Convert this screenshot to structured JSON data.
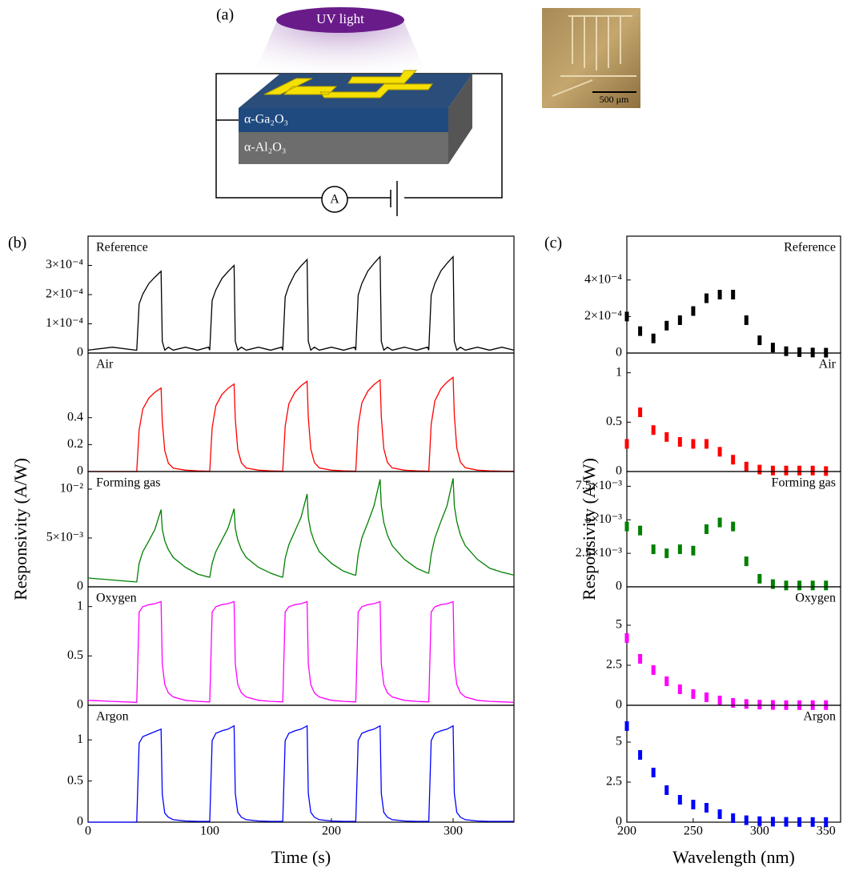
{
  "schematic": {
    "label": "(a)",
    "light": "UV light",
    "top_layer": "α-Ga₂O₃",
    "substrate": "α-Al₂O₃",
    "meter": "A",
    "scale_bar": "500 μm"
  },
  "chart_data": [
    {
      "type": "line",
      "name": "Reference",
      "color": "#000000",
      "panel_label": "(b)",
      "x": [
        0,
        20,
        39,
        40,
        42,
        45,
        50,
        55,
        60,
        61,
        63,
        66,
        70,
        80,
        90,
        99,
        100,
        102,
        105,
        110,
        115,
        120,
        121,
        123,
        126,
        130,
        140,
        150,
        159,
        160,
        162,
        165,
        170,
        175,
        180,
        181,
        183,
        186,
        190,
        200,
        210,
        219,
        220,
        222,
        225,
        230,
        235,
        240,
        241,
        243,
        246,
        250,
        260,
        270,
        279,
        280,
        282,
        285,
        290,
        295,
        300,
        301,
        303,
        306,
        310,
        320,
        330,
        340,
        350
      ],
      "values": [
        1e-05,
        2e-05,
        1e-05,
        1e-05,
        0.000168,
        0.000202,
        0.000238,
        0.00026,
        0.00028,
        4e-05,
        1e-05,
        2e-05,
        1e-05,
        2e-05,
        1e-05,
        2e-05,
        1e-05,
        0.00018,
        0.000216,
        0.000255,
        0.000279,
        0.0003,
        4e-05,
        1e-05,
        2e-05,
        1e-05,
        2e-05,
        1e-05,
        2e-05,
        1e-05,
        0.000192,
        0.00023,
        0.000272,
        0.000298,
        0.00032,
        4e-05,
        1e-05,
        2e-05,
        1e-05,
        2e-05,
        1e-05,
        2e-05,
        1e-05,
        0.000198,
        0.000238,
        0.000281,
        0.000307,
        0.00033,
        4e-05,
        1e-05,
        2e-05,
        1e-05,
        2e-05,
        1e-05,
        2e-05,
        1e-05,
        0.000198,
        0.000238,
        0.000281,
        0.000307,
        0.00033,
        4e-05,
        1e-05,
        2e-05,
        1e-05,
        2e-05,
        1e-05,
        2e-05,
        1e-05
      ],
      "xlim": [
        0,
        350
      ],
      "ylim": [
        0,
        0.0004
      ],
      "yticks": [
        0,
        {
          "value": 0.0001,
          "label": "1×10⁻⁴"
        },
        {
          "value": 0.0002,
          "label": "2×10⁻⁴"
        },
        {
          "value": 0.0003,
          "label": "3×10⁻⁴"
        }
      ]
    },
    {
      "type": "line",
      "name": "Air",
      "color": "#ff0000",
      "x": [
        0,
        20,
        39,
        40,
        42,
        45,
        50,
        55,
        60,
        61,
        63,
        66,
        70,
        80,
        90,
        99,
        100,
        102,
        105,
        110,
        115,
        120,
        121,
        123,
        126,
        130,
        140,
        150,
        159,
        160,
        162,
        165,
        170,
        175,
        180,
        181,
        183,
        186,
        190,
        200,
        210,
        219,
        220,
        222,
        225,
        230,
        235,
        240,
        241,
        243,
        246,
        250,
        260,
        270,
        279,
        280,
        282,
        285,
        290,
        295,
        300,
        301,
        303,
        306,
        310,
        320,
        330,
        340,
        350
      ],
      "values": [
        0,
        0,
        0,
        0,
        0.31,
        0.465,
        0.546,
        0.589,
        0.62,
        0.372,
        0.155,
        0.062,
        0.025,
        0.01,
        0.005,
        0.003,
        0.003,
        0.325,
        0.488,
        0.572,
        0.618,
        0.65,
        0.39,
        0.163,
        0.065,
        0.026,
        0.01,
        0.005,
        0.003,
        0.003,
        0.335,
        0.503,
        0.59,
        0.637,
        0.67,
        0.402,
        0.168,
        0.067,
        0.027,
        0.01,
        0.005,
        0.003,
        0.003,
        0.34,
        0.51,
        0.598,
        0.646,
        0.68,
        0.408,
        0.17,
        0.068,
        0.027,
        0.01,
        0.005,
        0.003,
        0.003,
        0.35,
        0.525,
        0.616,
        0.665,
        0.7,
        0.42,
        0.175,
        0.07,
        0.028,
        0.01,
        0.005,
        0.003,
        0.002
      ],
      "xlim": [
        0,
        350
      ],
      "ylim": [
        0,
        0.88
      ],
      "yticks": [
        0,
        0.2,
        0.4
      ]
    },
    {
      "type": "line",
      "name": "Forming gas",
      "color": "#008000",
      "ylabel": "Responsivity (A/W)",
      "x": [
        0,
        20,
        39,
        40,
        42,
        45,
        50,
        55,
        60,
        61,
        63,
        66,
        70,
        80,
        90,
        99,
        100,
        102,
        105,
        110,
        115,
        120,
        121,
        123,
        126,
        130,
        140,
        150,
        159,
        160,
        162,
        165,
        170,
        175,
        180,
        181,
        183,
        186,
        190,
        200,
        210,
        219,
        220,
        222,
        225,
        230,
        235,
        240,
        241,
        243,
        246,
        250,
        260,
        270,
        279,
        280,
        282,
        285,
        290,
        295,
        300,
        301,
        303,
        306,
        310,
        320,
        330,
        340,
        350
      ],
      "values": [
        0.0009,
        0.0007,
        0.0005,
        0.0005,
        0.0024,
        0.0036,
        0.0047,
        0.0059,
        0.0079,
        0.0059,
        0.0047,
        0.0038,
        0.003,
        0.002,
        0.0013,
        0.001,
        0.001,
        0.0024,
        0.0036,
        0.0048,
        0.006,
        0.008,
        0.006,
        0.0048,
        0.0038,
        0.003,
        0.002,
        0.0014,
        0.001,
        0.001,
        0.0029,
        0.0043,
        0.0057,
        0.0071,
        0.0095,
        0.0071,
        0.0057,
        0.0046,
        0.0036,
        0.0024,
        0.0016,
        0.0012,
        0.0012,
        0.0033,
        0.005,
        0.0066,
        0.0083,
        0.011,
        0.0083,
        0.0066,
        0.0053,
        0.0042,
        0.0028,
        0.0019,
        0.0014,
        0.0014,
        0.0033,
        0.005,
        0.0067,
        0.0083,
        0.0111,
        0.0083,
        0.0067,
        0.0053,
        0.0042,
        0.0028,
        0.0019,
        0.0015,
        0.0012
      ],
      "xlim": [
        0,
        350
      ],
      "ylim": [
        0,
        0.0118
      ],
      "yticks": [
        0,
        {
          "value": 0.005,
          "label": "5×10⁻³"
        },
        {
          "value": 0.01,
          "label": "10⁻²"
        }
      ]
    },
    {
      "type": "line",
      "name": "Oxygen",
      "color": "#ff00ff",
      "x": [
        0,
        20,
        39,
        40,
        42,
        45,
        50,
        55,
        60,
        61,
        63,
        66,
        70,
        80,
        90,
        99,
        100,
        102,
        105,
        110,
        115,
        120,
        121,
        123,
        126,
        130,
        140,
        150,
        159,
        160,
        162,
        165,
        170,
        175,
        180,
        181,
        183,
        186,
        190,
        200,
        210,
        219,
        220,
        222,
        225,
        230,
        235,
        240,
        241,
        243,
        246,
        250,
        260,
        270,
        279,
        280,
        282,
        285,
        290,
        295,
        300,
        301,
        303,
        306,
        310,
        320,
        330,
        340,
        350
      ],
      "values": [
        0.05,
        0.04,
        0.03,
        0.03,
        0.945,
        0.998,
        1.019,
        1.029,
        1.05,
        0.42,
        0.21,
        0.126,
        0.084,
        0.05,
        0.04,
        0.035,
        0.035,
        0.945,
        0.998,
        1.019,
        1.029,
        1.05,
        0.42,
        0.21,
        0.126,
        0.084,
        0.05,
        0.04,
        0.035,
        0.035,
        0.945,
        0.998,
        1.019,
        1.029,
        1.05,
        0.42,
        0.21,
        0.126,
        0.084,
        0.05,
        0.04,
        0.035,
        0.035,
        0.945,
        0.998,
        1.019,
        1.029,
        1.05,
        0.42,
        0.21,
        0.126,
        0.084,
        0.05,
        0.04,
        0.035,
        0.035,
        0.945,
        0.998,
        1.019,
        1.029,
        1.05,
        0.42,
        0.21,
        0.126,
        0.084,
        0.05,
        0.04,
        0.035,
        0.03
      ],
      "xlim": [
        0,
        350
      ],
      "ylim": [
        0,
        1.2
      ],
      "yticks": [
        0,
        0.5,
        1
      ]
    },
    {
      "type": "line",
      "name": "Argon",
      "color": "#0000ff",
      "xlabel": "Time (s)",
      "x": [
        0,
        20,
        39,
        40,
        42,
        45,
        50,
        55,
        60,
        61,
        63,
        66,
        70,
        80,
        90,
        99,
        100,
        102,
        105,
        110,
        115,
        120,
        121,
        123,
        126,
        130,
        140,
        150,
        159,
        160,
        162,
        165,
        170,
        175,
        180,
        181,
        183,
        186,
        190,
        200,
        210,
        219,
        220,
        222,
        225,
        230,
        235,
        240,
        241,
        243,
        246,
        250,
        260,
        270,
        279,
        280,
        282,
        285,
        290,
        295,
        300,
        301,
        303,
        306,
        310,
        320,
        330,
        340,
        350
      ],
      "values": [
        0,
        0,
        0,
        0.01,
        0.96,
        1.04,
        1.07,
        1.1,
        1.13,
        0.34,
        0.11,
        0.06,
        0.03,
        0.015,
        0.01,
        0.01,
        0.01,
        0.99,
        1.08,
        1.11,
        1.13,
        1.17,
        0.35,
        0.12,
        0.06,
        0.03,
        0.015,
        0.01,
        0.01,
        0.01,
        0.99,
        1.08,
        1.11,
        1.13,
        1.17,
        0.35,
        0.12,
        0.06,
        0.03,
        0.015,
        0.01,
        0.01,
        0.01,
        0.99,
        1.08,
        1.11,
        1.13,
        1.17,
        0.35,
        0.12,
        0.06,
        0.03,
        0.015,
        0.01,
        0.01,
        0.01,
        0.99,
        1.08,
        1.11,
        1.13,
        1.17,
        0.35,
        0.12,
        0.06,
        0.03,
        0.015,
        0.01,
        0.01,
        0.01
      ],
      "xlim": [
        0,
        350
      ],
      "ylim": [
        0,
        1.42
      ],
      "yticks": [
        0,
        0.5,
        1
      ],
      "xticks": [
        0,
        100,
        200,
        300
      ]
    },
    {
      "type": "scatter",
      "name": "Reference",
      "color": "#000000",
      "panel_label": "(c)",
      "x": [
        200,
        210,
        220,
        230,
        240,
        250,
        260,
        270,
        280,
        290,
        300,
        310,
        320,
        330,
        340,
        350
      ],
      "values": [
        0.0002,
        0.00012,
        8e-05,
        0.00015,
        0.00018,
        0.00023,
        0.0003,
        0.00032,
        0.00032,
        0.00018,
        7e-05,
        3e-05,
        1e-05,
        5e-06,
        3e-06,
        2e-06
      ],
      "xlim": [
        200,
        361
      ],
      "ylim": [
        0,
        0.00064
      ],
      "yticks": [
        0,
        {
          "value": 0.0002,
          "label": "2×10⁻⁴"
        },
        {
          "value": 0.0004,
          "label": "4×10⁻⁴"
        }
      ]
    },
    {
      "type": "scatter",
      "name": "Air",
      "color": "#ff0000",
      "x": [
        200,
        210,
        220,
        230,
        240,
        250,
        260,
        270,
        280,
        290,
        300,
        310,
        320,
        330,
        340,
        350
      ],
      "values": [
        0.28,
        0.6,
        0.42,
        0.35,
        0.3,
        0.28,
        0.28,
        0.2,
        0.12,
        0.05,
        0.02,
        0.01,
        0.01,
        0.01,
        0.01,
        0.005
      ],
      "xlim": [
        200,
        361
      ],
      "ylim": [
        0,
        1.2
      ],
      "yticks": [
        0,
        0.5,
        1
      ]
    },
    {
      "type": "scatter",
      "name": "Forming gas",
      "color": "#008000",
      "ylabel": "Responsivity (A/W)",
      "x": [
        200,
        210,
        220,
        230,
        240,
        250,
        260,
        270,
        280,
        290,
        300,
        310,
        320,
        330,
        340,
        350
      ],
      "values": [
        0.0045,
        0.0042,
        0.0028,
        0.0025,
        0.0028,
        0.0027,
        0.0043,
        0.0048,
        0.0045,
        0.0019,
        0.0006,
        0.0002,
        0.0001,
        0.0001,
        0.0001,
        0.0001
      ],
      "xlim": [
        200,
        361
      ],
      "ylim": [
        0,
        0.0086
      ],
      "yticks": [
        0,
        {
          "value": 0.0025,
          "label": "2.5×10⁻³"
        },
        {
          "value": 0.005,
          "label": "5×10⁻³"
        },
        {
          "value": 0.0075,
          "label": "7.5×10⁻³"
        }
      ]
    },
    {
      "type": "scatter",
      "name": "Oxygen",
      "color": "#ff00ff",
      "x": [
        200,
        210,
        220,
        230,
        240,
        250,
        260,
        270,
        280,
        290,
        300,
        310,
        320,
        330,
        340,
        350
      ],
      "values": [
        4.2,
        2.9,
        2.2,
        1.5,
        1,
        0.7,
        0.5,
        0.3,
        0.15,
        0.08,
        0.04,
        0.02,
        0.01,
        0.01,
        0.01,
        0.01
      ],
      "xlim": [
        200,
        361
      ],
      "ylim": [
        0,
        7.4
      ],
      "yticks": [
        0,
        2.5,
        5
      ]
    },
    {
      "type": "scatter",
      "name": "Argon",
      "color": "#0000ff",
      "xlabel": "Wavelength (nm)",
      "x": [
        200,
        210,
        220,
        230,
        240,
        250,
        260,
        270,
        280,
        290,
        300,
        310,
        320,
        330,
        340,
        350
      ],
      "values": [
        6,
        4.2,
        3.1,
        2,
        1.4,
        1.1,
        0.9,
        0.5,
        0.25,
        0.12,
        0.06,
        0.03,
        0.02,
        0.01,
        0.01,
        0.01
      ],
      "xlim": [
        200,
        361
      ],
      "ylim": [
        0,
        7.3
      ],
      "yticks": [
        0,
        2.5,
        5
      ],
      "xticks": [
        200,
        250,
        300,
        350
      ]
    }
  ]
}
